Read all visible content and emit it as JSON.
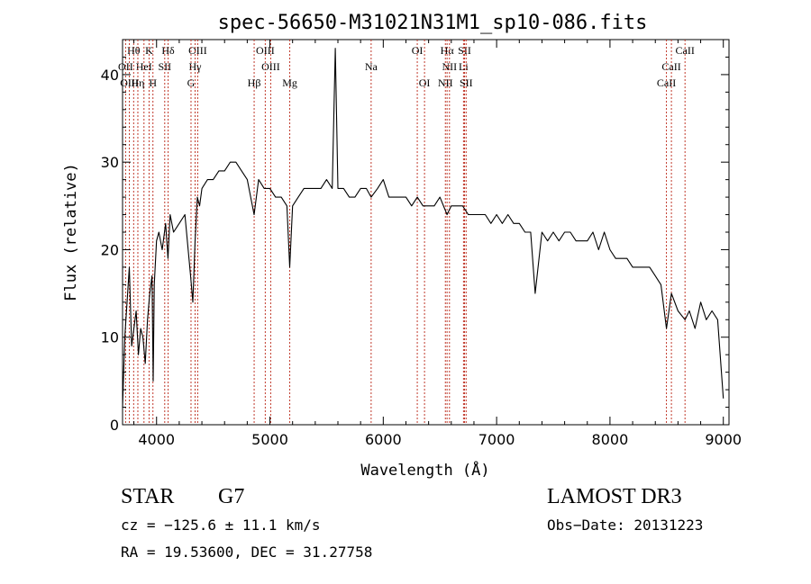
{
  "chart_data": {
    "type": "line",
    "title": "spec-56650-M31021N31M1_sp10-086.fits",
    "xlabel": "Wavelength (Å)",
    "ylabel": "Flux (relative)",
    "xlim": [
      3700,
      9050
    ],
    "ylim": [
      0,
      44
    ],
    "xticks": [
      4000,
      5000,
      6000,
      7000,
      8000,
      9000
    ],
    "yticks": [
      0,
      10,
      20,
      30,
      40
    ],
    "grid": false,
    "series": [
      {
        "x": [
          3700,
          3720,
          3740,
          3760,
          3780,
          3800,
          3820,
          3840,
          3860,
          3880,
          3900,
          3920,
          3940,
          3960,
          3970,
          3980,
          4000,
          4020,
          4050,
          4080,
          4101,
          4120,
          4150,
          4200,
          4250,
          4300,
          4320,
          4340,
          4360,
          4380,
          4400,
          4450,
          4500,
          4550,
          4600,
          4650,
          4700,
          4750,
          4800,
          4861,
          4900,
          4950,
          5000,
          5050,
          5100,
          5150,
          5175,
          5200,
          5250,
          5300,
          5350,
          5400,
          5450,
          5500,
          5550,
          5577,
          5600,
          5650,
          5700,
          5750,
          5800,
          5850,
          5893,
          5950,
          6000,
          6050,
          6100,
          6150,
          6200,
          6250,
          6300,
          6350,
          6400,
          6450,
          6500,
          6563,
          6600,
          6650,
          6700,
          6750,
          6800,
          6850,
          6900,
          6950,
          7000,
          7050,
          7100,
          7150,
          7200,
          7250,
          7300,
          7340,
          7400,
          7450,
          7500,
          7550,
          7600,
          7650,
          7700,
          7750,
          7800,
          7850,
          7900,
          7950,
          8000,
          8050,
          8100,
          8150,
          8200,
          8250,
          8300,
          8350,
          8400,
          8450,
          8498,
          8542,
          8600,
          8662,
          8700,
          8750,
          8800,
          8850,
          8900,
          8950,
          9000
        ],
        "y": [
          2,
          10,
          14,
          18,
          9,
          11,
          13,
          8,
          11,
          10,
          7,
          12,
          15,
          17,
          5,
          16,
          21,
          22,
          20,
          23,
          19,
          24,
          22,
          23,
          24,
          17,
          14,
          21,
          26,
          25,
          27,
          28,
          28,
          29,
          29,
          30,
          30,
          29,
          28,
          24,
          28,
          27,
          27,
          26,
          26,
          25,
          18,
          25,
          26,
          27,
          27,
          27,
          27,
          28,
          27,
          43,
          27,
          27,
          26,
          26,
          27,
          27,
          26,
          27,
          28,
          26,
          26,
          26,
          26,
          25,
          26,
          25,
          25,
          25,
          26,
          24,
          25,
          25,
          25,
          24,
          24,
          24,
          24,
          23,
          24,
          23,
          24,
          23,
          23,
          22,
          22,
          15,
          22,
          21,
          22,
          21,
          22,
          22,
          21,
          21,
          21,
          22,
          20,
          22,
          20,
          19,
          19,
          19,
          18,
          18,
          18,
          18,
          17,
          16,
          11,
          15,
          13,
          12,
          13,
          11,
          14,
          12,
          13,
          12,
          3
        ]
      }
    ],
    "annotations": [
      {
        "label": "Hθ",
        "x": 3798,
        "row": 0
      },
      {
        "label": "K",
        "x": 3934,
        "row": 0
      },
      {
        "label": "Hδ",
        "x": 4102,
        "row": 0
      },
      {
        "label": "OIII",
        "x": 4363,
        "row": 0
      },
      {
        "label": "OIII",
        "x": 4959,
        "row": 0
      },
      {
        "label": "OI",
        "x": 6300,
        "row": 0
      },
      {
        "label": "Hα",
        "x": 6563,
        "row": 0
      },
      {
        "label": "SII",
        "x": 6717,
        "row": 0
      },
      {
        "label": "CaII",
        "x": 8662,
        "row": 0
      },
      {
        "label": "OII",
        "x": 3727,
        "row": 1
      },
      {
        "label": "HeI",
        "x": 3889,
        "row": 1
      },
      {
        "label": "SII",
        "x": 4072,
        "row": 1
      },
      {
        "label": "Hγ",
        "x": 4340,
        "row": 1
      },
      {
        "label": "OIII",
        "x": 5007,
        "row": 1
      },
      {
        "label": "Na",
        "x": 5893,
        "row": 1
      },
      {
        "label": "NII",
        "x": 6584,
        "row": 1
      },
      {
        "label": "Li",
        "x": 6708,
        "row": 1
      },
      {
        "label": "CaII",
        "x": 8542,
        "row": 1
      },
      {
        "label": "OIII",
        "x": 3760,
        "row": 2
      },
      {
        "label": "Hη",
        "x": 3835,
        "row": 2
      },
      {
        "label": "H",
        "x": 3968,
        "row": 2
      },
      {
        "label": "G",
        "x": 4304,
        "row": 2
      },
      {
        "label": "Hβ",
        "x": 4861,
        "row": 2
      },
      {
        "label": "Mg",
        "x": 5175,
        "row": 2
      },
      {
        "label": "OI",
        "x": 6364,
        "row": 2
      },
      {
        "label": "NII",
        "x": 6548,
        "row": 2
      },
      {
        "label": "SII",
        "x": 6731,
        "row": 2
      },
      {
        "label": "CaII",
        "x": 8498,
        "row": 2
      }
    ]
  },
  "info": {
    "class": "STAR",
    "subclass": "G7",
    "survey": "LAMOST DR3",
    "velocity": "cz = −125.6 ± 11.1 km/s",
    "obs_date": "Obs−Date: 20131223",
    "coords": "RA =  19.53600, DEC =  31.27758"
  }
}
